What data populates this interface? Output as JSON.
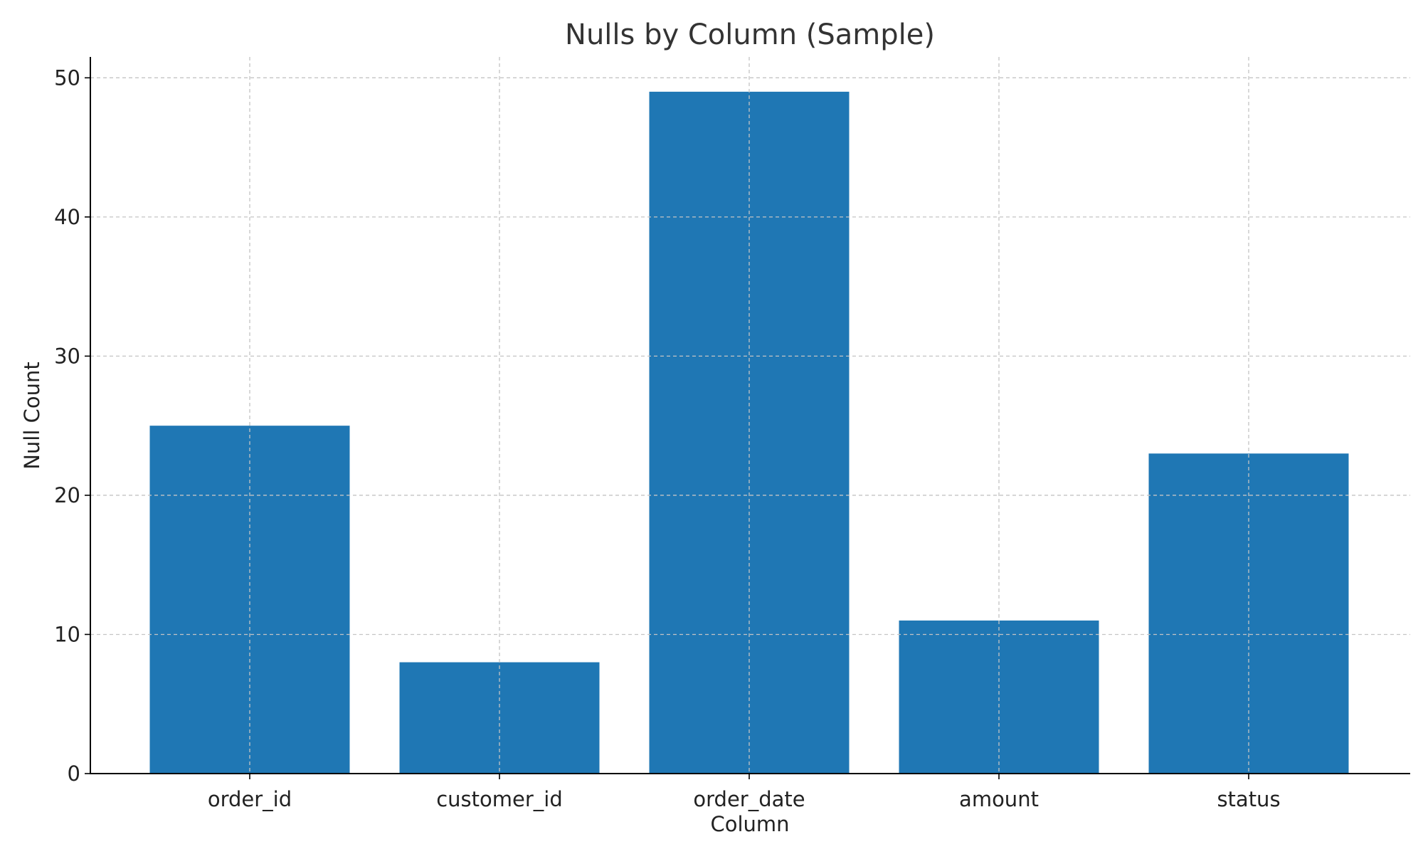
{
  "chart_data": {
    "type": "bar",
    "title": "Nulls by Column (Sample)",
    "xlabel": "Column",
    "ylabel": "Null Count",
    "categories": [
      "order_id",
      "customer_id",
      "order_date",
      "amount",
      "status"
    ],
    "values": [
      25,
      8,
      49,
      11,
      23
    ],
    "ylim": [
      0,
      51.5
    ],
    "yticks": [
      0,
      10,
      20,
      30,
      40,
      50
    ],
    "grid": true,
    "bar_color": "#1f77b4"
  }
}
